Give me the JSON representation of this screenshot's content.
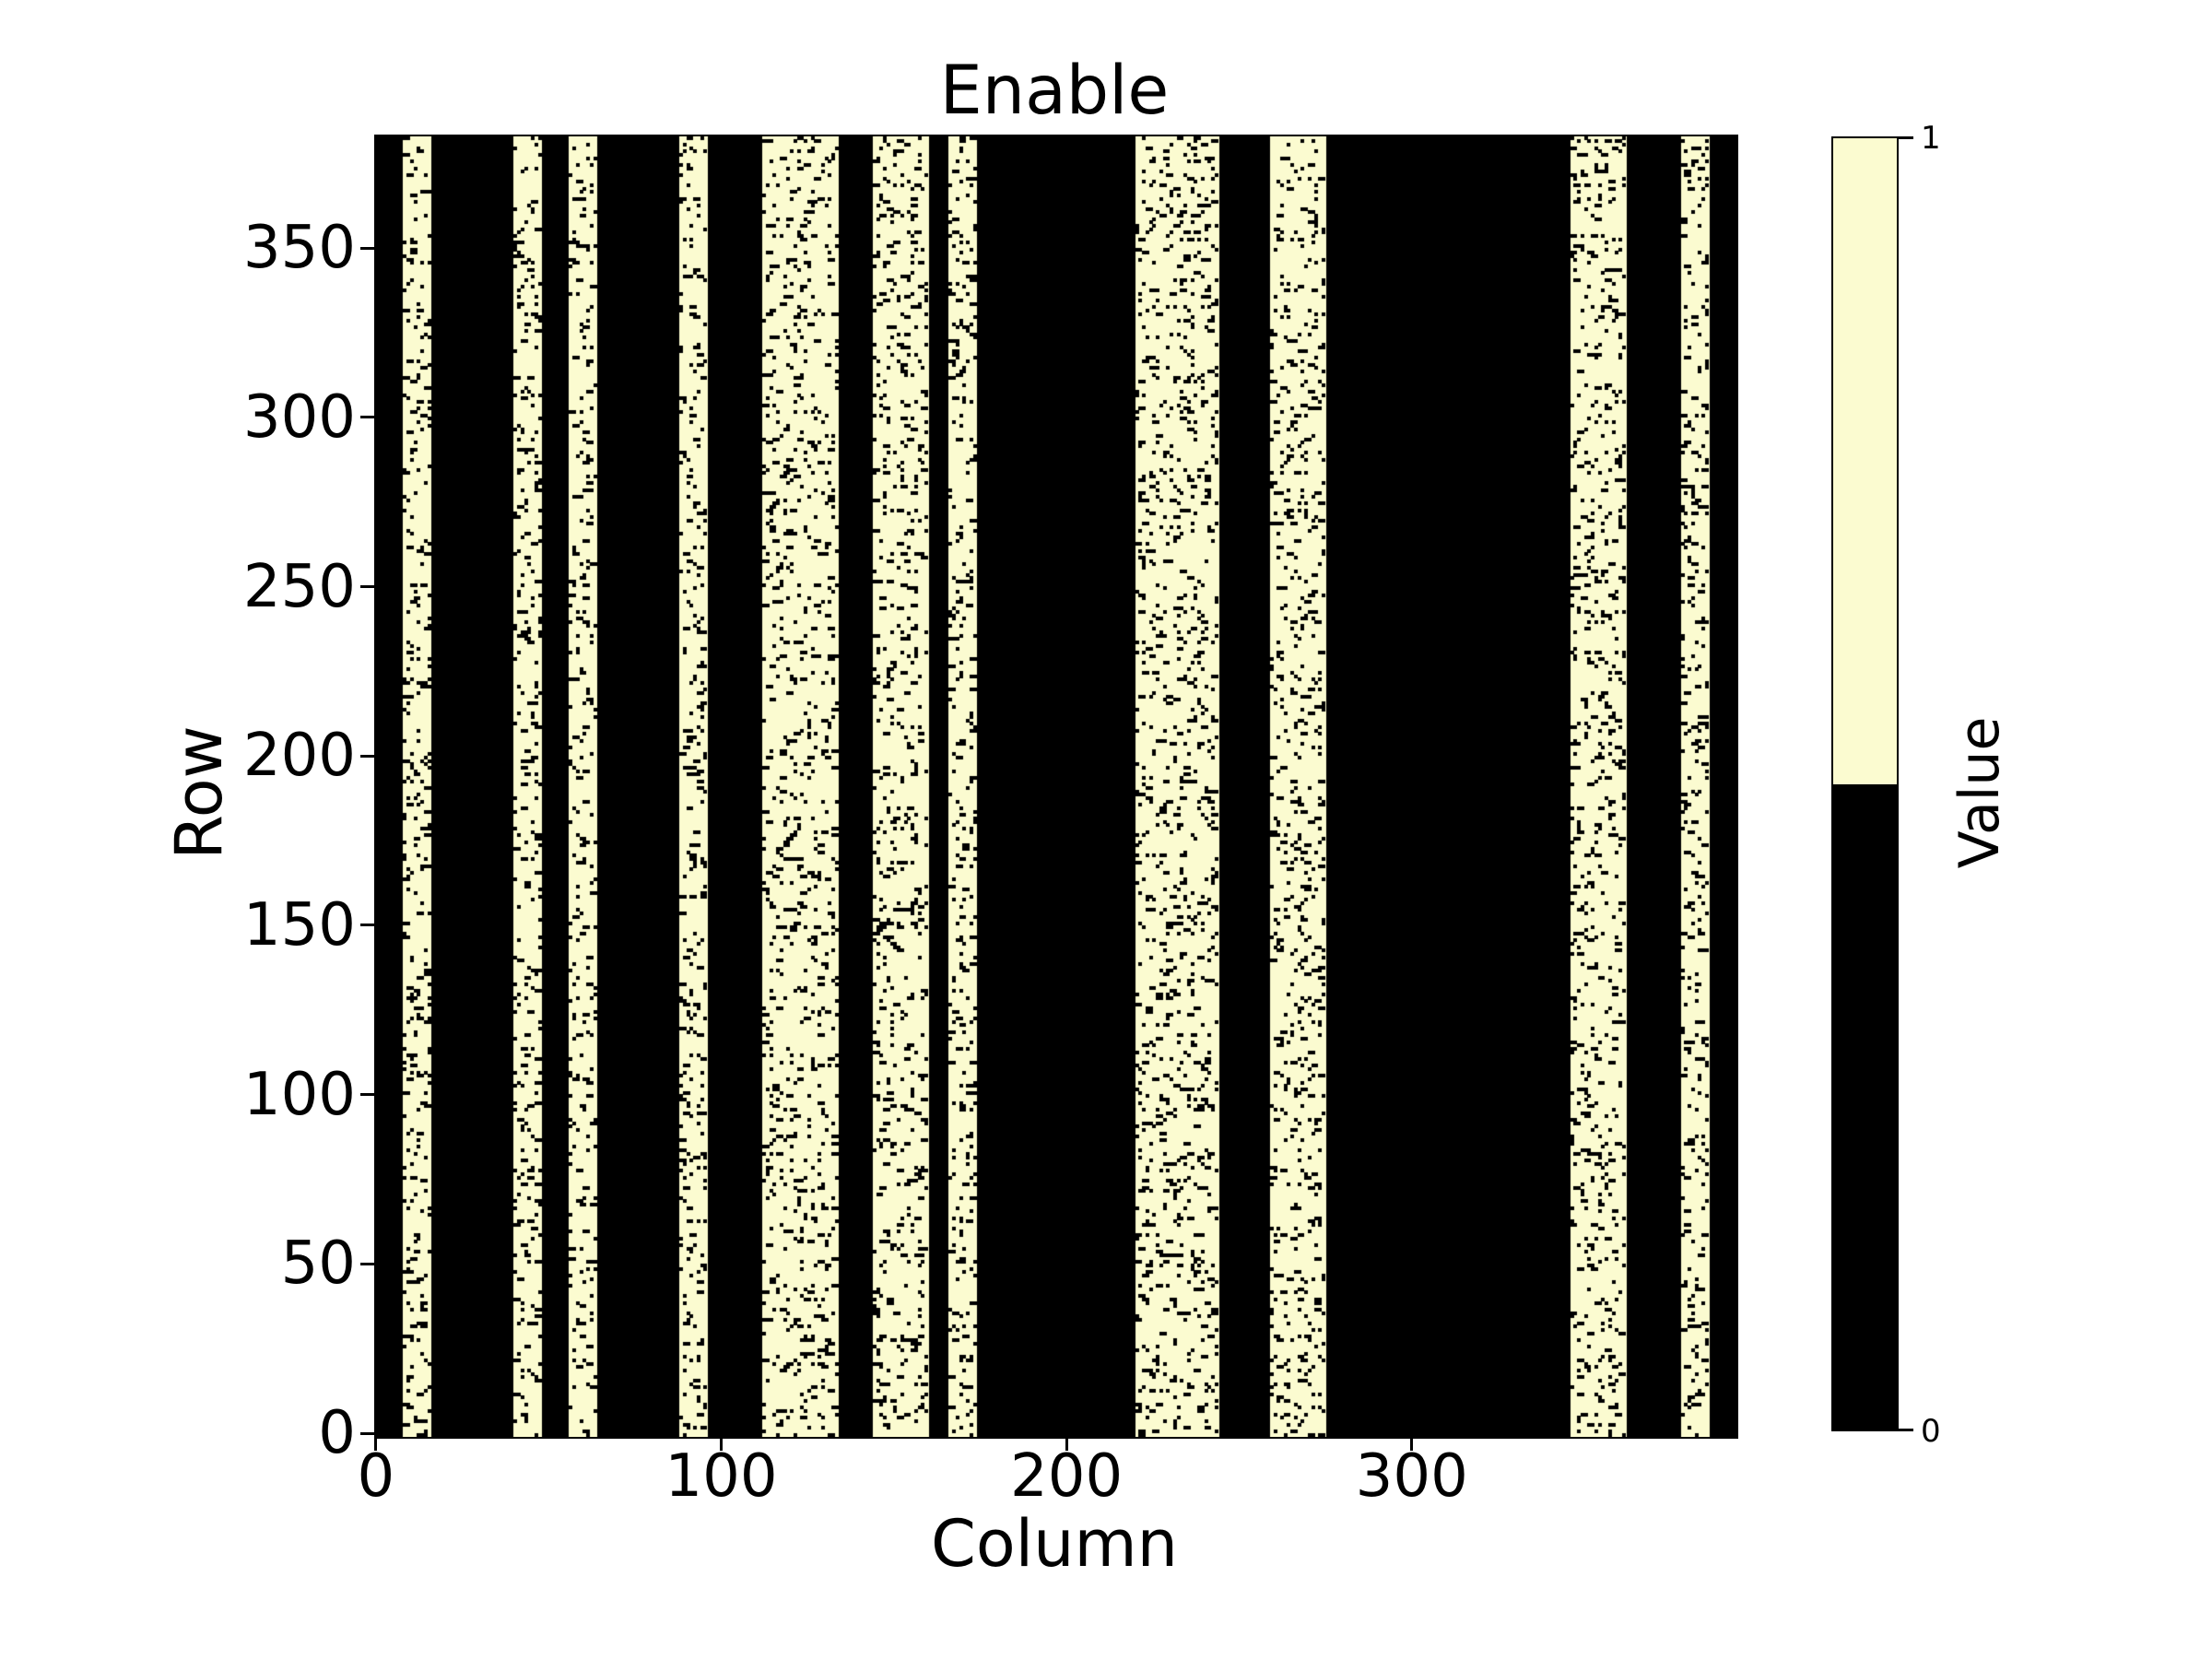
{
  "title": "Enable",
  "x_axis": {
    "label": "Column",
    "ticks": [
      0,
      100,
      200,
      300
    ]
  },
  "y_axis": {
    "label": "Row",
    "ticks": [
      0,
      50,
      100,
      150,
      200,
      250,
      300,
      350
    ]
  },
  "colorbar": {
    "label": "Value",
    "tick_top": "1",
    "tick_bottom": "0",
    "color_high": "#FBFBD0",
    "color_low": "#000000"
  },
  "chart_data": {
    "type": "heatmap",
    "title": "Enable",
    "xlabel": "Column",
    "ylabel": "Row",
    "n_rows": 384,
    "n_cols": 394,
    "xlim": [
      -0.5,
      393.5
    ],
    "ylim": [
      -0.5,
      383.5
    ],
    "value_domain": [
      0,
      1
    ],
    "value_colors": {
      "0": "#000000",
      "1": "#FBFBD0"
    },
    "background_value": 0,
    "one_value_column_bands": [
      [
        8,
        16
      ],
      [
        40,
        48
      ],
      [
        56,
        64
      ],
      [
        88,
        96
      ],
      [
        112,
        134
      ],
      [
        144,
        160
      ],
      [
        166,
        174
      ],
      [
        220,
        244
      ],
      [
        259,
        275
      ],
      [
        346,
        362
      ],
      [
        378,
        386
      ]
    ],
    "zero_noise_fraction_within_bands": 0.12,
    "noise_seed": 7,
    "grid": false,
    "legend_position": "right-colorbar"
  }
}
